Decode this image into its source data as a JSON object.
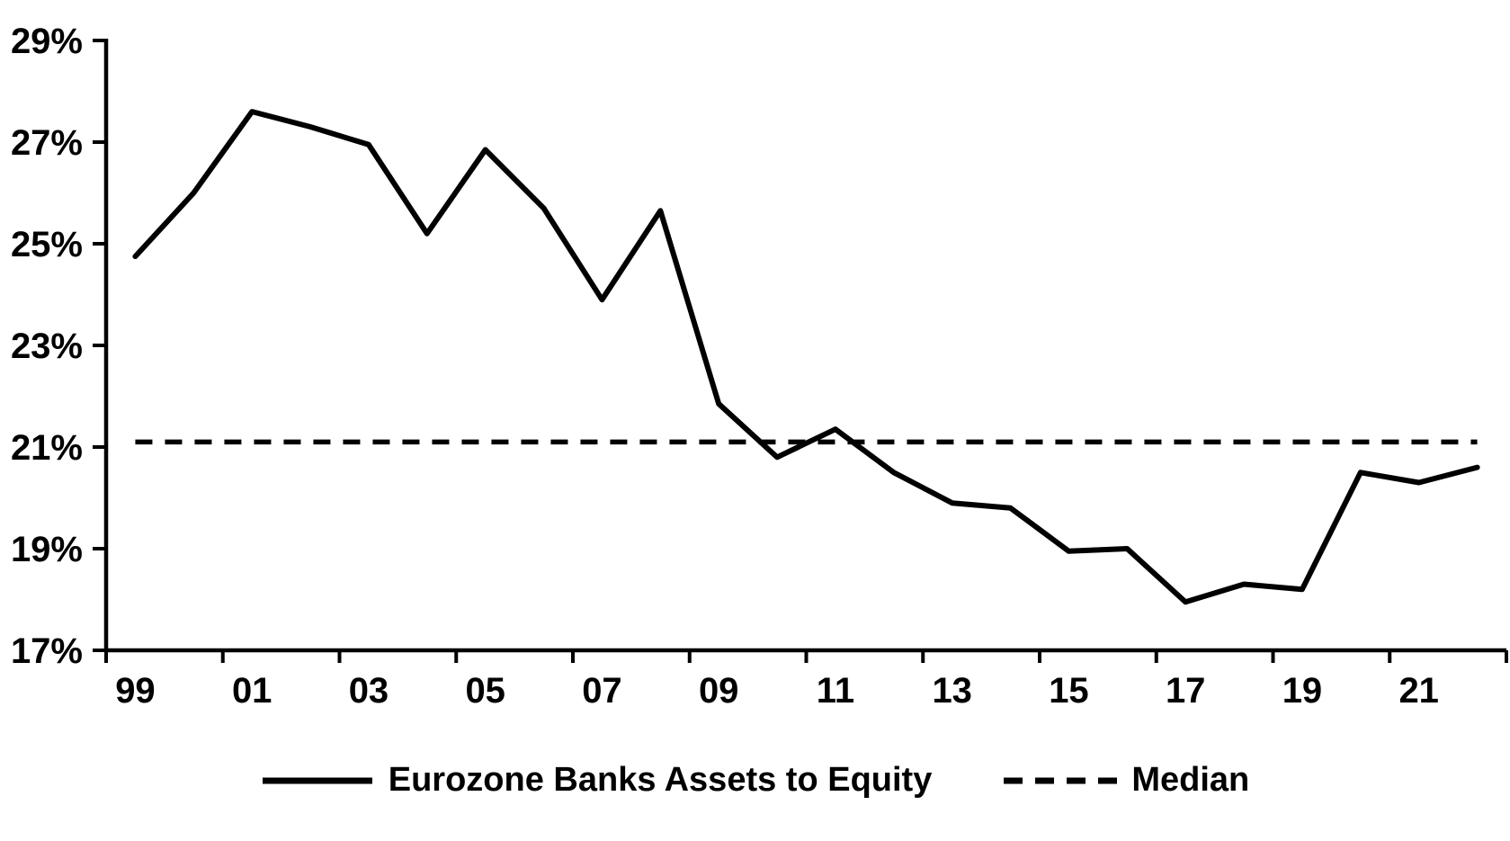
{
  "chart_data": {
    "type": "line",
    "title": "",
    "xlabel": "",
    "ylabel": "",
    "grid": false,
    "legend_position": "bottom",
    "ylim": [
      17,
      29
    ],
    "background_color": "#ffffff",
    "line_color": "#000000",
    "categories": [
      "99",
      "00",
      "01",
      "02",
      "03",
      "04",
      "05",
      "06",
      "07",
      "08",
      "09",
      "10",
      "11",
      "12",
      "13",
      "14",
      "15",
      "16",
      "17",
      "18",
      "19",
      "20",
      "21",
      "22"
    ],
    "xtick_labels": [
      "99",
      "01",
      "03",
      "05",
      "07",
      "09",
      "11",
      "13",
      "15",
      "17",
      "19",
      "21"
    ],
    "yticks": [
      {
        "value": 29,
        "label": "29%"
      },
      {
        "value": 27,
        "label": "27%"
      },
      {
        "value": 25,
        "label": "25%"
      },
      {
        "value": 23,
        "label": "23%"
      },
      {
        "value": 21,
        "label": "21%"
      },
      {
        "value": 19,
        "label": "19%"
      },
      {
        "value": 17,
        "label": "17%"
      }
    ],
    "series": [
      {
        "name": "Eurozone Banks Assets to Equity",
        "style": "solid",
        "values": [
          24.75,
          26.0,
          27.6,
          27.3,
          26.95,
          25.2,
          26.85,
          25.7,
          23.9,
          25.65,
          21.85,
          20.8,
          21.35,
          20.5,
          19.9,
          19.8,
          18.95,
          19.0,
          17.95,
          18.3,
          18.2,
          20.5,
          20.3,
          20.6
        ]
      },
      {
        "name": "Median",
        "style": "dashed",
        "value": 21.1
      }
    ]
  }
}
